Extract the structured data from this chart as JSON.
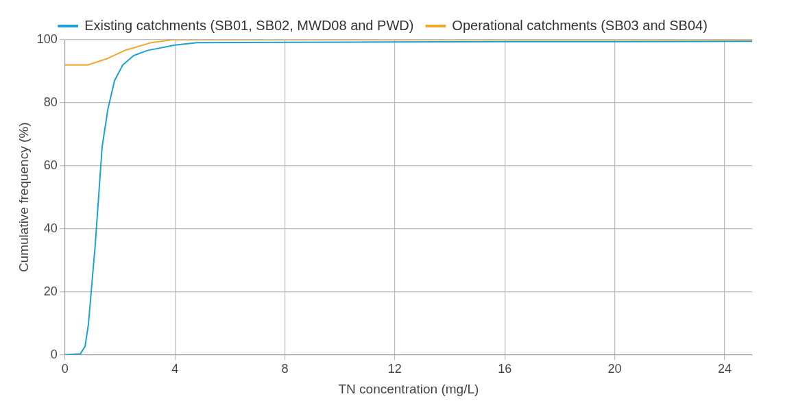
{
  "chart_data": {
    "type": "line",
    "xlabel": "TN concentration (mg/L)",
    "ylabel": "Cumulative frequency (%)",
    "xlim": [
      0,
      25
    ],
    "xticks": [
      0,
      4,
      8,
      12,
      16,
      20,
      24
    ],
    "ylim": [
      0,
      100
    ],
    "yticks": [
      0,
      20,
      40,
      60,
      80,
      100
    ],
    "grid": true,
    "legend": "top",
    "marker": "none",
    "line_style": "solid",
    "series": [
      {
        "name": "Existing catchments (SB01, SB02, MWD08 and PWD)",
        "color": "#1ba1d6",
        "x": [
          0,
          0.56,
          0.73,
          0.85,
          1.1,
          1.35,
          1.56,
          1.8,
          2.1,
          2.5,
          3,
          4,
          4.8,
          8,
          12,
          16,
          20,
          25
        ],
        "values": [
          0,
          0.3,
          2.7,
          9.6,
          35,
          66,
          78,
          87,
          92,
          95,
          96.6,
          98.3,
          99.1,
          99.2,
          99.3,
          99.4,
          99.4,
          99.5
        ]
      },
      {
        "name": "Operational catchments (SB03 and SB04)",
        "color": "#f0a830",
        "x": [
          0,
          0.83,
          1.5,
          2.2,
          3.1,
          3.9,
          8,
          12,
          16,
          20,
          25
        ],
        "values": [
          92,
          92,
          93.9,
          96.7,
          99,
          100,
          100,
          100,
          100,
          100,
          100
        ]
      }
    ]
  }
}
